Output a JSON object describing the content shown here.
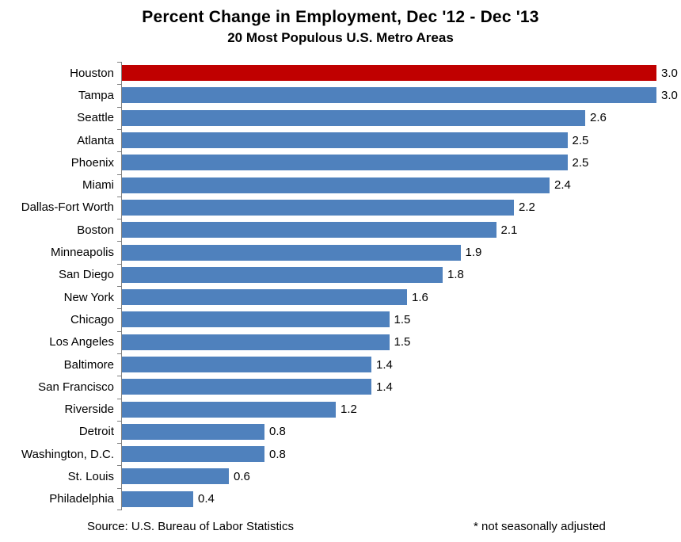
{
  "title": "Percent Change in Employment, Dec '12 - Dec '13",
  "subtitle": "20 Most Populous U.S. Metro Areas",
  "footer": {
    "source": "Source: U.S. Bureau of Labor Statistics",
    "note": "* not seasonally adjusted"
  },
  "colors": {
    "bar": "#4F81BD",
    "highlight": "#C00000",
    "axis": "#808080",
    "text": "#000000"
  },
  "chart_data": {
    "type": "bar",
    "orientation": "horizontal",
    "title": "Percent Change in Employment, Dec '12 - Dec '13",
    "subtitle": "20 Most Populous U.S. Metro Areas",
    "xlabel": "",
    "ylabel": "",
    "xlim": [
      0,
      3.0
    ],
    "grid": false,
    "legend": false,
    "value_labels": true,
    "highlighted_category": "Houston",
    "categories": [
      "Houston",
      "Tampa",
      "Seattle",
      "Atlanta",
      "Phoenix",
      "Miami",
      "Dallas-Fort Worth",
      "Boston",
      "Minneapolis",
      "San Diego",
      "New York",
      "Chicago",
      "Los Angeles",
      "Baltimore",
      "San Francisco",
      "Riverside",
      "Detroit",
      "Washington, D.C.",
      "St. Louis",
      "Philadelphia"
    ],
    "values": [
      3.0,
      3.0,
      2.6,
      2.5,
      2.5,
      2.4,
      2.2,
      2.1,
      1.9,
      1.8,
      1.6,
      1.5,
      1.5,
      1.4,
      1.4,
      1.2,
      0.8,
      0.8,
      0.6,
      0.4
    ]
  }
}
